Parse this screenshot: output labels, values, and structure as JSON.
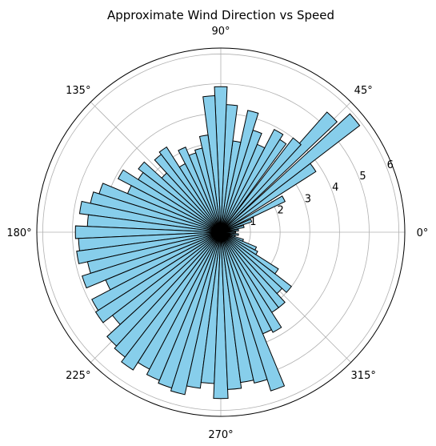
{
  "chart_data": {
    "type": "bar",
    "projection": "polar",
    "title": "Approximate Wind Direction vs Speed",
    "angle_ticks": [
      "0°",
      "45°",
      "90°",
      "135°",
      "180°",
      "225°",
      "270°",
      "315°"
    ],
    "radial_ticks": [
      "1",
      "2",
      "3",
      "4",
      "5",
      "6"
    ],
    "rlim": [
      0,
      6.2
    ],
    "grid": true,
    "bar_color": "#87ceeb",
    "edge_color": "#000000",
    "angle_unit": "degrees",
    "angles": [
      0,
      7,
      14,
      21,
      28,
      35,
      40,
      46,
      50,
      56,
      60,
      65,
      70,
      75,
      80,
      85,
      90,
      95,
      100,
      105,
      110,
      115,
      120,
      125,
      130,
      135,
      140,
      145,
      150,
      155,
      160,
      165,
      170,
      175,
      180,
      185,
      190,
      195,
      200,
      205,
      210,
      215,
      220,
      225,
      230,
      235,
      240,
      245,
      250,
      255,
      260,
      265,
      270,
      275,
      280,
      285,
      290,
      295,
      300,
      305,
      310,
      315,
      320,
      325,
      330,
      335,
      340,
      345,
      352
    ],
    "widths": [
      5,
      5,
      5,
      5,
      5,
      5,
      5,
      5,
      5,
      5,
      5,
      5,
      5,
      5,
      5,
      5,
      5,
      5,
      5,
      5,
      5,
      5,
      5,
      5,
      5,
      5,
      5,
      5,
      5,
      5,
      5,
      5,
      5,
      5,
      5,
      5,
      5,
      5,
      5,
      5,
      5,
      5,
      5,
      5,
      5,
      5,
      5,
      5,
      5,
      5,
      5,
      5,
      5,
      5,
      5,
      5,
      5,
      5,
      5,
      5,
      5,
      5,
      5,
      5,
      5,
      5,
      5,
      5,
      5
    ],
    "values": [
      0.5,
      0.6,
      0.8,
      1.1,
      2.4,
      3.8,
      5.9,
      5.4,
      4.0,
      3.7,
      3.9,
      3.2,
      3.6,
      4.2,
      3.1,
      4.3,
      4.9,
      4.6,
      3.3,
      2.9,
      2.8,
      3.1,
      2.6,
      3.4,
      3.3,
      2.7,
      3.5,
      3.3,
      3.9,
      3.4,
      4.3,
      4.5,
      4.8,
      4.5,
      4.9,
      4.8,
      4.9,
      4.6,
      4.9,
      4.2,
      4.9,
      5.0,
      4.6,
      5.2,
      5.3,
      5.5,
      5.2,
      5.4,
      5.5,
      5.6,
      5.3,
      5.1,
      5.6,
      5.3,
      5.1,
      5.2,
      5.6,
      3.7,
      3.8,
      3.2,
      3.2,
      2.8,
      3.0,
      2.3,
      1.4,
      1.3,
      0.8,
      0.5,
      0.6
    ]
  }
}
